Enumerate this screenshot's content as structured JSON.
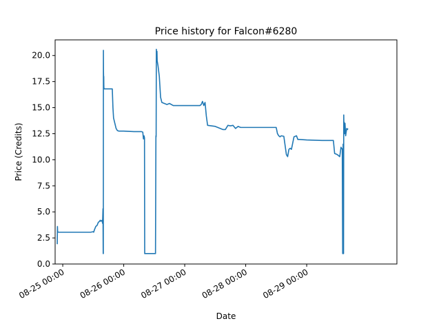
{
  "chart_data": {
    "type": "line",
    "title": "Price history for Falcon#6280",
    "xlabel": "Date",
    "ylabel": "Price (Credits)",
    "x_axis_type": "date",
    "xlim": [
      "2024-08-24 21:00",
      "2024-08-30 11:30"
    ],
    "ylim": [
      0,
      21.5
    ],
    "grid": false,
    "legend": "none",
    "line_color": "#1f77b4",
    "xticks": [
      {
        "value": "2024-08-25 00:00",
        "label": "08-25 00:00"
      },
      {
        "value": "2024-08-26 00:00",
        "label": "08-26 00:00"
      },
      {
        "value": "2024-08-27 00:00",
        "label": "08-27 00:00"
      },
      {
        "value": "2024-08-28 00:00",
        "label": "08-28 00:00"
      },
      {
        "value": "2024-08-29 00:00",
        "label": "08-29 00:00"
      }
    ],
    "yticks": [
      {
        "value": 0.0,
        "label": "0.0"
      },
      {
        "value": 2.5,
        "label": "2.5"
      },
      {
        "value": 5.0,
        "label": "5.0"
      },
      {
        "value": 7.5,
        "label": "7.5"
      },
      {
        "value": 10.0,
        "label": "10.0"
      },
      {
        "value": 12.5,
        "label": "12.5"
      },
      {
        "value": 15.0,
        "label": "15.0"
      },
      {
        "value": 17.5,
        "label": "17.5"
      },
      {
        "value": 20.0,
        "label": "20.0"
      }
    ],
    "series": [
      {
        "x": [
          "2024-08-24 21:50",
          "2024-08-24 21:55",
          "2024-08-24 21:58",
          "2024-08-24 22:05",
          "2024-08-25 01:00",
          "2024-08-25 04:00",
          "2024-08-25 07:00",
          "2024-08-25 11:00",
          "2024-08-25 12:00",
          "2024-08-25 12:10",
          "2024-08-25 12:30",
          "2024-08-25 13:00",
          "2024-08-25 13:30",
          "2024-08-25 14:00",
          "2024-08-25 14:30",
          "2024-08-25 14:45",
          "2024-08-25 15:00",
          "2024-08-25 15:30",
          "2024-08-25 15:40",
          "2024-08-25 15:50",
          "2024-08-25 15:55",
          "2024-08-25 15:58",
          "2024-08-25 16:00",
          "2024-08-25 16:02",
          "2024-08-25 16:05",
          "2024-08-25 16:08",
          "2024-08-25 16:10",
          "2024-08-25 16:12",
          "2024-08-25 16:15",
          "2024-08-25 16:25",
          "2024-08-25 16:35",
          "2024-08-25 17:00",
          "2024-08-25 17:30",
          "2024-08-25 18:30",
          "2024-08-25 19:30",
          "2024-08-25 19:45",
          "2024-08-25 20:00",
          "2024-08-25 20:30",
          "2024-08-25 21:00",
          "2024-08-25 21:30",
          "2024-08-25 22:00",
          "2024-08-26 00:00",
          "2024-08-26 04:00",
          "2024-08-26 07:00",
          "2024-08-26 07:30",
          "2024-08-26 07:45",
          "2024-08-26 08:00",
          "2024-08-26 08:10",
          "2024-08-26 08:15",
          "2024-08-26 08:20",
          "2024-08-26 12:30",
          "2024-08-26 12:40",
          "2024-08-26 12:45",
          "2024-08-26 12:50",
          "2024-08-26 12:55",
          "2024-08-26 13:05",
          "2024-08-26 13:10",
          "2024-08-26 13:30",
          "2024-08-26 14:00",
          "2024-08-26 14:30",
          "2024-08-26 15:00",
          "2024-08-26 16:00",
          "2024-08-26 17:00",
          "2024-08-26 18:00",
          "2024-08-26 19:30",
          "2024-08-26 21:00",
          "2024-08-27 00:00",
          "2024-08-27 03:00",
          "2024-08-27 06:00",
          "2024-08-27 06:30",
          "2024-08-27 07:00",
          "2024-08-27 07:30",
          "2024-08-27 08:00",
          "2024-08-27 08:30",
          "2024-08-27 09:00",
          "2024-08-27 12:00",
          "2024-08-27 14:00",
          "2024-08-27 15:00",
          "2024-08-27 16:00",
          "2024-08-27 17:00",
          "2024-08-27 18:00",
          "2024-08-27 19:00",
          "2024-08-27 20:00",
          "2024-08-27 21:00",
          "2024-08-27 22:00",
          "2024-08-28 00:00",
          "2024-08-28 04:00",
          "2024-08-28 08:00",
          "2024-08-28 12:00",
          "2024-08-28 12:30",
          "2024-08-28 13:00",
          "2024-08-28 13:30",
          "2024-08-28 14:00",
          "2024-08-28 15:00",
          "2024-08-28 16:00",
          "2024-08-28 16:30",
          "2024-08-28 17:00",
          "2024-08-28 17:30",
          "2024-08-28 18:00",
          "2024-08-28 19:00",
          "2024-08-28 20:00",
          "2024-08-28 20:30",
          "2024-08-28 21:00",
          "2024-08-29 00:00",
          "2024-08-29 06:00",
          "2024-08-29 10:30",
          "2024-08-29 11:00",
          "2024-08-29 12:00",
          "2024-08-29 13:00",
          "2024-08-29 13:30",
          "2024-08-29 14:00",
          "2024-08-29 14:10",
          "2024-08-29 14:15",
          "2024-08-29 14:20",
          "2024-08-29 14:25",
          "2024-08-29 14:30",
          "2024-08-29 14:35",
          "2024-08-29 14:40",
          "2024-08-29 14:45",
          "2024-08-29 14:55",
          "2024-08-29 15:05",
          "2024-08-29 15:20",
          "2024-08-29 15:30",
          "2024-08-29 15:45",
          "2024-08-29 16:00",
          "2024-08-29 16:15"
        ],
        "y": [
          1.9,
          3.6,
          3.2,
          3.05,
          3.05,
          3.05,
          3.05,
          3.05,
          3.1,
          3.05,
          3.3,
          3.6,
          3.7,
          4.0,
          4.1,
          4.2,
          4.1,
          4.2,
          3.9,
          5.3,
          1.0,
          1.0,
          20.5,
          18.5,
          17.8,
          18.0,
          17.2,
          16.9,
          16.8,
          16.8,
          16.8,
          16.8,
          16.8,
          16.8,
          16.8,
          15.0,
          14.0,
          13.5,
          13.0,
          12.8,
          12.75,
          12.75,
          12.7,
          12.7,
          12.65,
          12.0,
          12.3,
          12.1,
          1.0,
          1.0,
          1.0,
          12.3,
          12.2,
          20.6,
          19.8,
          20.4,
          19.5,
          19.0,
          18.0,
          16.0,
          15.5,
          15.4,
          15.3,
          15.4,
          15.2,
          15.2,
          15.2,
          15.2,
          15.2,
          15.3,
          15.6,
          15.2,
          15.5,
          14.2,
          13.3,
          13.2,
          13.0,
          12.9,
          12.9,
          13.3,
          13.25,
          13.3,
          13.0,
          13.2,
          13.1,
          13.1,
          13.1,
          13.1,
          13.1,
          12.5,
          12.3,
          12.2,
          12.3,
          12.25,
          10.5,
          10.3,
          11.0,
          11.1,
          11.0,
          12.2,
          12.3,
          11.95,
          11.95,
          11.9,
          11.85,
          11.85,
          10.6,
          10.5,
          10.3,
          11.2,
          11.0,
          1.0,
          1.0,
          11.5,
          11.2,
          1.0,
          14.3,
          13.0,
          13.6,
          12.5,
          13.5,
          12.3,
          12.6,
          13.0,
          12.9,
          13.0
        ]
      }
    ]
  }
}
